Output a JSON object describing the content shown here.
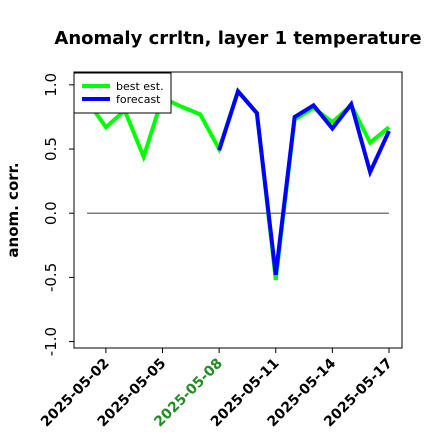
{
  "chart_data": {
    "type": "line",
    "title": "Anomaly crrltn, layer 1 temperature",
    "ylabel": "anom. corr.",
    "xlabel": "",
    "ylim": [
      -1.05,
      1.1
    ],
    "yticks": [
      -1.0,
      -0.5,
      0.0,
      0.5,
      1.0
    ],
    "yticklabels": [
      "-1.0",
      "-0.5",
      "0.0",
      "0.5",
      "1.0"
    ],
    "x": [
      "2025-05-01",
      "2025-05-02",
      "2025-05-03",
      "2025-05-04",
      "2025-05-05",
      "2025-05-06",
      "2025-05-07",
      "2025-05-08",
      "2025-05-09",
      "2025-05-10",
      "2025-05-11",
      "2025-05-12",
      "2025-05-13",
      "2025-05-14",
      "2025-05-15",
      "2025-05-16",
      "2025-05-17"
    ],
    "xticks": [
      "2025-05-02",
      "2025-05-05",
      "2025-05-08",
      "2025-05-11",
      "2025-05-14",
      "2025-05-17"
    ],
    "highlight_tick": "2025-05-08",
    "highlight_color": "#228B22",
    "reference_line": 0.0,
    "grid": false,
    "legend_position": "top-left",
    "series": [
      {
        "name": "best est.",
        "color": "#00ff00",
        "values": [
          0.88,
          0.67,
          0.8,
          0.44,
          0.9,
          0.83,
          0.77,
          0.5,
          0.95,
          0.78,
          -0.52,
          0.73,
          0.82,
          0.71,
          0.84,
          0.55,
          0.67
        ]
      },
      {
        "name": "forecast",
        "color": "#0000ff",
        "values": [
          null,
          null,
          null,
          null,
          null,
          null,
          null,
          0.49,
          0.95,
          0.78,
          -0.48,
          0.75,
          0.84,
          0.66,
          0.85,
          0.32,
          0.64
        ]
      }
    ]
  }
}
